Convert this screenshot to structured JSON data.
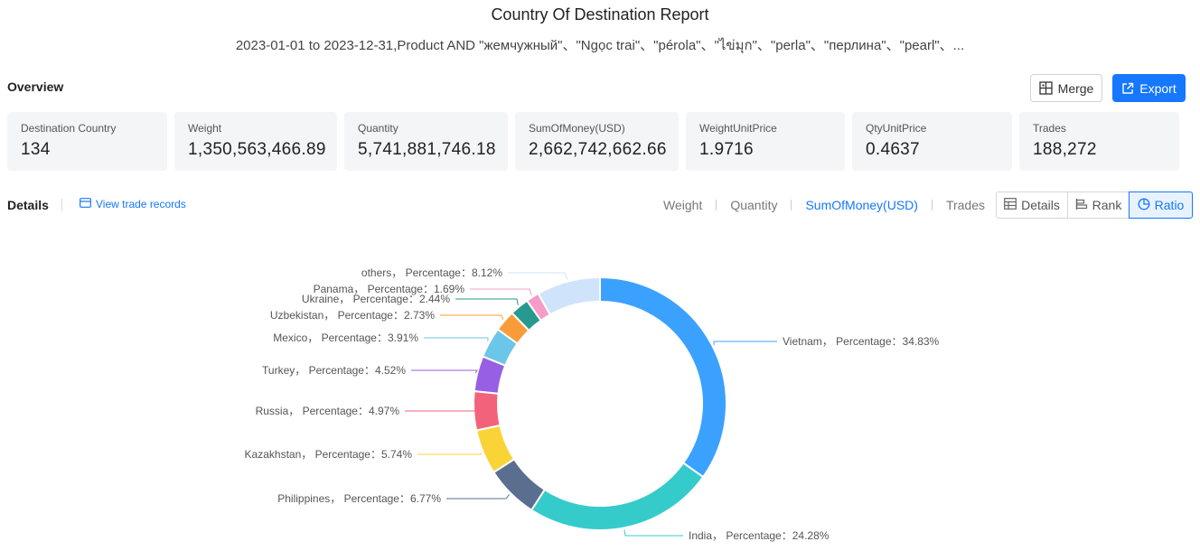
{
  "report": {
    "title": "Country Of Destination Report",
    "subtitle": "2023-01-01 to 2023-12-31,Product AND \"жемчужный\"、\"Ngọc trai\"、\"pérola\"、\"ไข่มุก\"、\"perla\"、\"перлина\"、\"pearl\"、..."
  },
  "overview": {
    "label": "Overview",
    "merge_label": "Merge",
    "export_label": "Export",
    "cards": [
      {
        "label": "Destination Country",
        "value": "134"
      },
      {
        "label": "Weight",
        "value": "1,350,563,466.89"
      },
      {
        "label": "Quantity",
        "value": "5,741,881,746.18"
      },
      {
        "label": "SumOfMoney(USD)",
        "value": "2,662,742,662.66"
      },
      {
        "label": "WeightUnitPrice",
        "value": "1.9716"
      },
      {
        "label": "QtyUnitPrice",
        "value": "0.4637"
      },
      {
        "label": "Trades",
        "value": "188,272"
      }
    ]
  },
  "details": {
    "label": "Details",
    "view_records": "View trade records",
    "metric_tabs": [
      "Weight",
      "Quantity",
      "SumOfMoney(USD)",
      "Trades"
    ],
    "active_metric": "SumOfMoney(USD)",
    "view_buttons": [
      "Details",
      "Rank",
      "Ratio"
    ],
    "active_view": "Ratio"
  },
  "colors": {
    "accent": "#1677ff",
    "card_bg": "#f4f5f7"
  },
  "chart_data": {
    "type": "pie",
    "style": "donut",
    "label_format": "{name}， Percentage：{value}%",
    "slices": [
      {
        "name": "Vietnam",
        "value": 34.83,
        "color": "#3ba1ff"
      },
      {
        "name": "India",
        "value": 24.28,
        "color": "#36cbcb"
      },
      {
        "name": "Philippines",
        "value": 6.77,
        "color": "#5a6f8f"
      },
      {
        "name": "Kazakhstan",
        "value": 5.74,
        "color": "#fad337"
      },
      {
        "name": "Russia",
        "value": 4.97,
        "color": "#f2637b"
      },
      {
        "name": "Turkey",
        "value": 4.52,
        "color": "#975fe4"
      },
      {
        "name": "Mexico",
        "value": 3.91,
        "color": "#6cc6ea"
      },
      {
        "name": "Uzbekistan",
        "value": 2.73,
        "color": "#f89c3b"
      },
      {
        "name": "Ukraine",
        "value": 2.44,
        "color": "#269a8f"
      },
      {
        "name": "Panama",
        "value": 1.69,
        "color": "#f69cc6"
      },
      {
        "name": "others",
        "value": 8.12,
        "color": "#cfe4fb"
      }
    ]
  }
}
